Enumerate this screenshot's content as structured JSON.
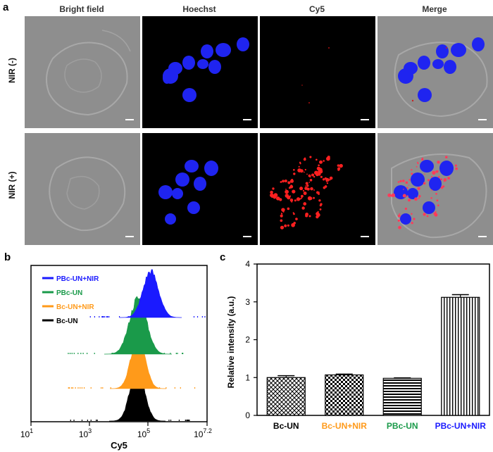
{
  "panel_a": {
    "letter": "a",
    "columns": [
      "Bright field",
      "Hoechst",
      "Cy5",
      "Merge"
    ],
    "rows": [
      "NIR (-)",
      "NIR (+)"
    ],
    "colors": {
      "hoechst": "#1f24f0",
      "cy5": "#ff2020"
    }
  },
  "panel_b": {
    "letter": "b",
    "x_axis_label": "Cy5",
    "x_tick_labels": [
      {
        "base": "10",
        "exp": "1"
      },
      {
        "base": "10",
        "exp": "3"
      },
      {
        "base": "10",
        "exp": "5"
      },
      {
        "base": "10",
        "exp": "7.2"
      }
    ],
    "legend": [
      {
        "name": "PBc-UN+NIR",
        "color": "#1a1aff"
      },
      {
        "name": "PBc-UN",
        "color": "#1a9a4a"
      },
      {
        "name": "Bc-UN+NIR",
        "color": "#ff9a1a"
      },
      {
        "name": "Bc-UN",
        "color": "#000000"
      }
    ]
  },
  "panel_c": {
    "letter": "c"
  },
  "chart_data": {
    "type": "bar",
    "categories": [
      "Bc-UN",
      "Bc-UN+NIR",
      "PBc-UN",
      "PBc-UN+NIR"
    ],
    "category_colors": [
      "#000000",
      "#ff9a1a",
      "#1a9a4a",
      "#1a1aff"
    ],
    "values": [
      1.0,
      1.07,
      0.98,
      3.12
    ],
    "errors": [
      0.05,
      0.02,
      0.01,
      0.07
    ],
    "ylabel": "Relative intensity (a.u.)",
    "ylim": [
      0,
      4
    ],
    "yticks": [
      0,
      1,
      2,
      3,
      4
    ],
    "patterns": [
      "crosshatch",
      "checker",
      "horizontal",
      "vertical"
    ]
  }
}
